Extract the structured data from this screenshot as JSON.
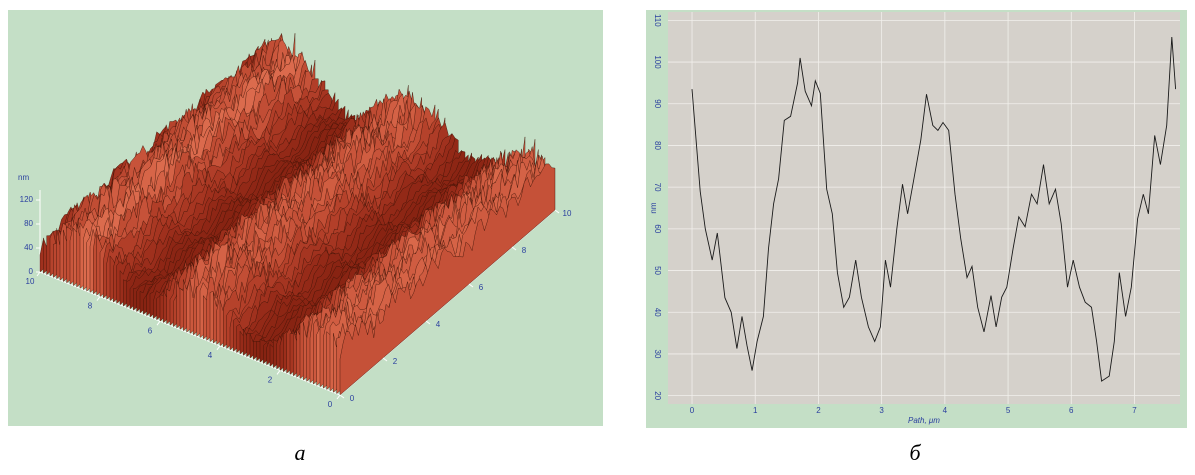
{
  "chart_data": [
    {
      "type": "surface3d",
      "zlabel": "nm",
      "zlim": [
        0,
        120
      ],
      "zticks": [
        0,
        40,
        80,
        120
      ],
      "xlim": [
        0,
        10
      ],
      "xticks": [
        0,
        2,
        4,
        6,
        8,
        10
      ],
      "ylim": [
        0,
        10
      ],
      "yticks": [
        0,
        2,
        4,
        6,
        8,
        10
      ]
    },
    {
      "type": "line",
      "xlabel": "Path, μm",
      "ylabel": "nm",
      "color": "#1a1a1a",
      "grid": true,
      "xlim": [
        -0.38,
        7.72
      ],
      "xticks": [
        0,
        1,
        2,
        3,
        4,
        5,
        6,
        7
      ],
      "ylim": [
        18,
        112
      ],
      "yticks": [
        20,
        30,
        40,
        50,
        60,
        70,
        80,
        90,
        100,
        110
      ],
      "x": [
        0,
        0.13,
        0.21,
        0.32,
        0.4,
        0.44,
        0.52,
        0.62,
        0.71,
        0.79,
        0.87,
        0.95,
        1.03,
        1.13,
        1.21,
        1.29,
        1.37,
        1.46,
        1.56,
        1.67,
        1.71,
        1.79,
        1.89,
        1.95,
        2.03,
        2.13,
        2.22,
        2.3,
        2.4,
        2.49,
        2.59,
        2.68,
        2.79,
        2.89,
        2.98,
        3.06,
        3.14,
        3.24,
        3.33,
        3.41,
        3.51,
        3.62,
        3.71,
        3.81,
        3.89,
        3.97,
        4.06,
        4.16,
        4.25,
        4.35,
        4.43,
        4.52,
        4.62,
        4.73,
        4.81,
        4.9,
        4.98,
        5.08,
        5.17,
        5.27,
        5.37,
        5.46,
        5.56,
        5.65,
        5.75,
        5.84,
        5.94,
        6.03,
        6.13,
        6.22,
        6.32,
        6.4,
        6.48,
        6.6,
        6.68,
        6.76,
        6.86,
        6.95,
        7.05,
        7.14,
        7.22,
        7.32,
        7.41,
        7.51,
        7.59,
        7.65
      ],
      "values": [
        93.5,
        69,
        60,
        52.5,
        59,
        54,
        43.5,
        40,
        31.3,
        39,
        32,
        26,
        33,
        39,
        55.3,
        66,
        72,
        86,
        87,
        95,
        101,
        93,
        89.5,
        95.5,
        92.5,
        69.5,
        63.6,
        49.5,
        41.2,
        43.6,
        52.5,
        43.6,
        36.5,
        33,
        36.5,
        52.5,
        46,
        60,
        70.7,
        63.6,
        72,
        81.3,
        92.3,
        84.8,
        83.6,
        85.5,
        83.6,
        68.3,
        57.7,
        48.3,
        51,
        41.2,
        35.3,
        44,
        36.5,
        43.6,
        46,
        55.3,
        62.9,
        60.5,
        68.3,
        66,
        75.4,
        66,
        69.5,
        61.2,
        46,
        52.5,
        46,
        42.4,
        41.2,
        33,
        23.5,
        24.7,
        33,
        49.5,
        39,
        46,
        62.4,
        68.3,
        63.6,
        82.4,
        75.4,
        84.8,
        106,
        93.5
      ]
    }
  ],
  "captions": [
    "а",
    "б"
  ]
}
